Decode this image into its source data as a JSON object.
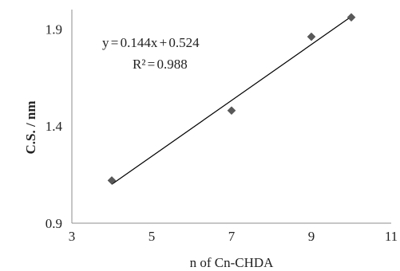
{
  "chart_data": {
    "type": "scatter",
    "title": "",
    "xlabel": "n of Cn-CHDA",
    "ylabel": "C.S. / nm",
    "xlim": [
      3,
      11
    ],
    "ylim": [
      0.9,
      2.0
    ],
    "x_ticks": [
      "3",
      "5",
      "7",
      "9",
      "11"
    ],
    "y_ticks": [
      "0.9",
      "1.4",
      "1.9"
    ],
    "grid": false,
    "legend": "none",
    "marker": "diamond",
    "marker_color": "#595959",
    "line_color": "#000000",
    "series": [
      {
        "x": [
          4,
          7,
          9,
          10
        ],
        "y": [
          1.12,
          1.48,
          1.86,
          1.96
        ]
      }
    ],
    "trendline": {
      "type": "linear",
      "slope": 0.144,
      "intercept": 0.524,
      "x_range": [
        4,
        10
      ]
    },
    "annotations": {
      "equation": "y = 0.144x + 0.524",
      "r_squared": "R² = 0.988"
    }
  }
}
